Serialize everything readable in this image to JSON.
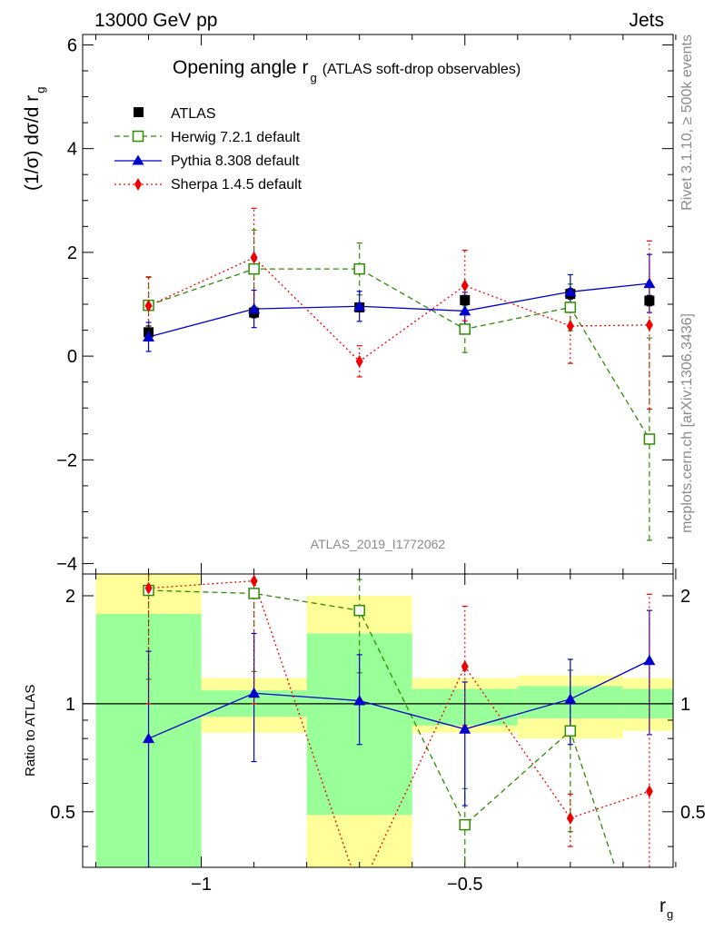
{
  "header": {
    "left": "13000 GeV pp",
    "right": "Jets"
  },
  "side": {
    "rivet": "Rivet 3.1.10, ≥ 500k events",
    "mcplots": "mcplots.cern.ch [arXiv:1306.3436]"
  },
  "chart_data": {
    "type": "line",
    "title": "Opening angle r",
    "title_sub": "g",
    "title_suffix": "(ATLAS soft-drop observables)",
    "analysis_label": "ATLAS_2019_I1772062",
    "ylabel": "(1/σ) dσ/d r",
    "ylabel_sub": "g",
    "xlabel": "r",
    "xlabel_sub": "g",
    "x_range": [
      -1.225,
      -0.105
    ],
    "main": {
      "ylim": [
        -4.2,
        6.2
      ],
      "yticks": [
        -4,
        -2,
        0,
        2,
        4,
        6
      ],
      "ytick_labels": [
        "−4",
        "−2",
        "0",
        "2",
        "4",
        "6"
      ]
    },
    "ratio": {
      "ylabel": "Ratio to ATLAS",
      "ylim": [
        0.35,
        2.3
      ],
      "log": true,
      "yticks": [
        0.5,
        1,
        2
      ],
      "ytick_labels": [
        "0.5",
        "1",
        "2"
      ]
    },
    "xticks": [
      -1,
      -0.5
    ],
    "xtick_labels": [
      "−1",
      "−0.5"
    ],
    "x": [
      -1.1,
      -0.9,
      -0.7,
      -0.5,
      -0.3,
      -0.15
    ],
    "bin_edges": [
      -1.2,
      -1.0,
      -0.8,
      -0.6,
      -0.4,
      -0.2,
      -0.1
    ],
    "band": {
      "yellow_lo": [
        0.35,
        0.83,
        0.35,
        0.83,
        0.8,
        0.84
      ],
      "yellow_hi": [
        2.3,
        1.18,
        2.0,
        1.18,
        1.2,
        1.18
      ],
      "green_lo": [
        0.35,
        0.92,
        0.49,
        0.87,
        0.91,
        0.91
      ],
      "green_hi": [
        1.78,
        1.09,
        1.57,
        1.1,
        1.12,
        1.1
      ]
    },
    "data": {
      "name": "ATLAS",
      "y": [
        0.46,
        0.84,
        0.94,
        1.08,
        1.2,
        1.07
      ],
      "err": [
        0.12,
        0.1,
        0.08,
        0.09,
        0.1,
        0.1
      ]
    },
    "series": [
      {
        "name": "Herwig 7.2.1 default",
        "color": "#2e8b00",
        "dash": "6,4",
        "marker": "open-square",
        "y": [
          0.98,
          1.68,
          1.68,
          0.52,
          0.94,
          -1.6
        ],
        "err": [
          0.55,
          0.75,
          0.5,
          0.45,
          0.45,
          1.95
        ],
        "ratio": [
          2.07,
          2.03,
          1.82,
          0.46,
          0.84,
          0.18
        ],
        "ratio_err_lo": [
          0.9,
          0.8,
          0.6,
          0.12,
          0.4,
          0.0
        ],
        "ratio_err_hi": [
          0.9,
          0.8,
          0.4,
          0.12,
          0.4,
          0.0
        ]
      },
      {
        "name": "Pythia 8.308 default",
        "color": "#0000cc",
        "dash": "",
        "marker": "triangle",
        "y": [
          0.37,
          0.91,
          0.96,
          0.87,
          1.24,
          1.4
        ],
        "err": [
          0.28,
          0.36,
          0.29,
          0.36,
          0.33,
          0.56
        ],
        "ratio": [
          0.8,
          1.07,
          1.02,
          0.85,
          1.03,
          1.32
        ],
        "ratio_err_lo": [
          0.45,
          0.38,
          0.25,
          0.33,
          0.26,
          0.5
        ],
        "ratio_err_hi": [
          0.6,
          0.5,
          0.35,
          0.3,
          0.3,
          0.5
        ]
      },
      {
        "name": "Sherpa 1.4.5 default",
        "color": "#ee0000",
        "dash": "2,3",
        "marker": "diamond",
        "y": [
          0.97,
          1.9,
          -0.1,
          1.36,
          0.58,
          0.6
        ],
        "err": [
          0.55,
          0.95,
          0.3,
          0.68,
          0.72,
          1.62
        ],
        "ratio": [
          2.1,
          2.2,
          0.3,
          1.27,
          0.48,
          0.57
        ],
        "ratio_err_lo": [
          1.1,
          1.2,
          0.0,
          0.4,
          0.08,
          0.3
        ],
        "ratio_err_hi": [
          0.6,
          0.6,
          0.0,
          0.6,
          0.08,
          1.45
        ]
      }
    ]
  }
}
